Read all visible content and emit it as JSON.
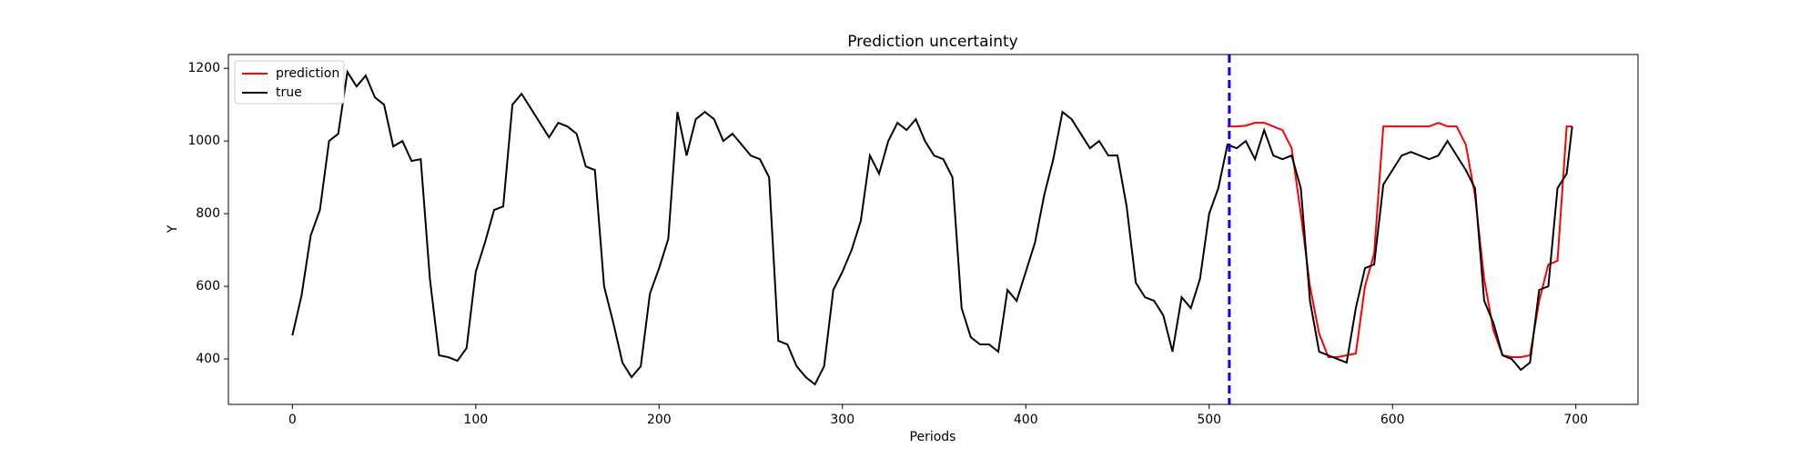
{
  "chart_data": {
    "type": "line",
    "title": "Prediction uncertainty",
    "x_label": "Periods",
    "y_label": "Y",
    "x": [
      0,
      5,
      10,
      15,
      20,
      25,
      30,
      35,
      40,
      45,
      50,
      55,
      60,
      65,
      70,
      75,
      80,
      85,
      90,
      95,
      100,
      105,
      110,
      115,
      120,
      125,
      130,
      135,
      140,
      145,
      150,
      155,
      160,
      165,
      170,
      175,
      180,
      185,
      190,
      195,
      200,
      205,
      210,
      215,
      220,
      225,
      230,
      235,
      240,
      245,
      250,
      255,
      260,
      265,
      270,
      275,
      280,
      285,
      290,
      295,
      300,
      305,
      310,
      315,
      320,
      325,
      330,
      335,
      340,
      345,
      350,
      355,
      360,
      365,
      370,
      375,
      380,
      385,
      390,
      395,
      400,
      405,
      410,
      415,
      420,
      425,
      430,
      435,
      440,
      445,
      450,
      455,
      460,
      465,
      470,
      475,
      480,
      485,
      490,
      495,
      500,
      505,
      510,
      515,
      520,
      525,
      530,
      535,
      540,
      545,
      550,
      555,
      560,
      565,
      570,
      575,
      580,
      585,
      590,
      595,
      600,
      605,
      610,
      615,
      620,
      625,
      630,
      635,
      640,
      645,
      650,
      655,
      660,
      665,
      670,
      675,
      680,
      685,
      690,
      695,
      698
    ],
    "series": [
      {
        "name": "prediction",
        "color": "#ff0000",
        "values": [
          null,
          null,
          null,
          null,
          null,
          null,
          null,
          null,
          null,
          null,
          null,
          null,
          null,
          null,
          null,
          null,
          null,
          null,
          null,
          null,
          null,
          null,
          null,
          null,
          null,
          null,
          null,
          null,
          null,
          null,
          null,
          null,
          null,
          null,
          null,
          null,
          null,
          null,
          null,
          null,
          null,
          null,
          null,
          null,
          null,
          null,
          null,
          null,
          null,
          null,
          null,
          null,
          null,
          null,
          null,
          null,
          null,
          null,
          null,
          null,
          null,
          null,
          null,
          null,
          null,
          null,
          null,
          null,
          null,
          null,
          null,
          null,
          null,
          null,
          null,
          null,
          null,
          null,
          null,
          null,
          null,
          null,
          null,
          null,
          null,
          null,
          null,
          null,
          null,
          null,
          null,
          null,
          null,
          null,
          null,
          null,
          null,
          null,
          null,
          null,
          null,
          null,
          1040,
          1040,
          1042,
          1050,
          1050,
          1040,
          1030,
          980,
          800,
          600,
          470,
          405,
          405,
          410,
          415,
          600,
          690,
          1040,
          1040,
          1040,
          1040,
          1040,
          1040,
          1050,
          1040,
          1040,
          990,
          850,
          620,
          480,
          410,
          405,
          405,
          410,
          560,
          660,
          670,
          1040,
          1040
        ]
      },
      {
        "name": "true",
        "color": "#000000",
        "values": [
          465,
          575,
          740,
          810,
          1000,
          1020,
          1190,
          1150,
          1180,
          1120,
          1100,
          985,
          1000,
          945,
          950,
          620,
          410,
          405,
          395,
          430,
          640,
          720,
          810,
          820,
          1100,
          1130,
          1090,
          1050,
          1010,
          1050,
          1040,
          1020,
          930,
          920,
          600,
          500,
          390,
          350,
          380,
          580,
          650,
          730,
          1080,
          960,
          1060,
          1080,
          1060,
          1000,
          1020,
          990,
          960,
          950,
          900,
          450,
          440,
          380,
          350,
          330,
          380,
          590,
          640,
          700,
          780,
          960,
          910,
          1000,
          1050,
          1030,
          1060,
          1000,
          960,
          950,
          900,
          540,
          460,
          440,
          440,
          420,
          590,
          560,
          640,
          720,
          850,
          950,
          1080,
          1060,
          1020,
          980,
          1000,
          960,
          960,
          820,
          610,
          570,
          560,
          520,
          420,
          570,
          540,
          620,
          800,
          870,
          990,
          980,
          1000,
          950,
          1030,
          960,
          950,
          960,
          870,
          560,
          420,
          410,
          400,
          390,
          540,
          650,
          660,
          880,
          920,
          960,
          970,
          960,
          950,
          960,
          1000,
          960,
          920,
          870,
          560,
          500,
          410,
          400,
          370,
          390,
          590,
          600,
          870,
          910,
          1040
        ]
      }
    ],
    "vline": 511,
    "vline_color": "#0000ff",
    "xlim": [
      -34.9,
      733.9
    ],
    "xticks": [
      0,
      100,
      200,
      300,
      400,
      500,
      600,
      700
    ],
    "ylim": [
      275,
      1238
    ],
    "yticks": [
      400,
      600,
      800,
      1000,
      1200
    ],
    "legend": "upper left"
  }
}
